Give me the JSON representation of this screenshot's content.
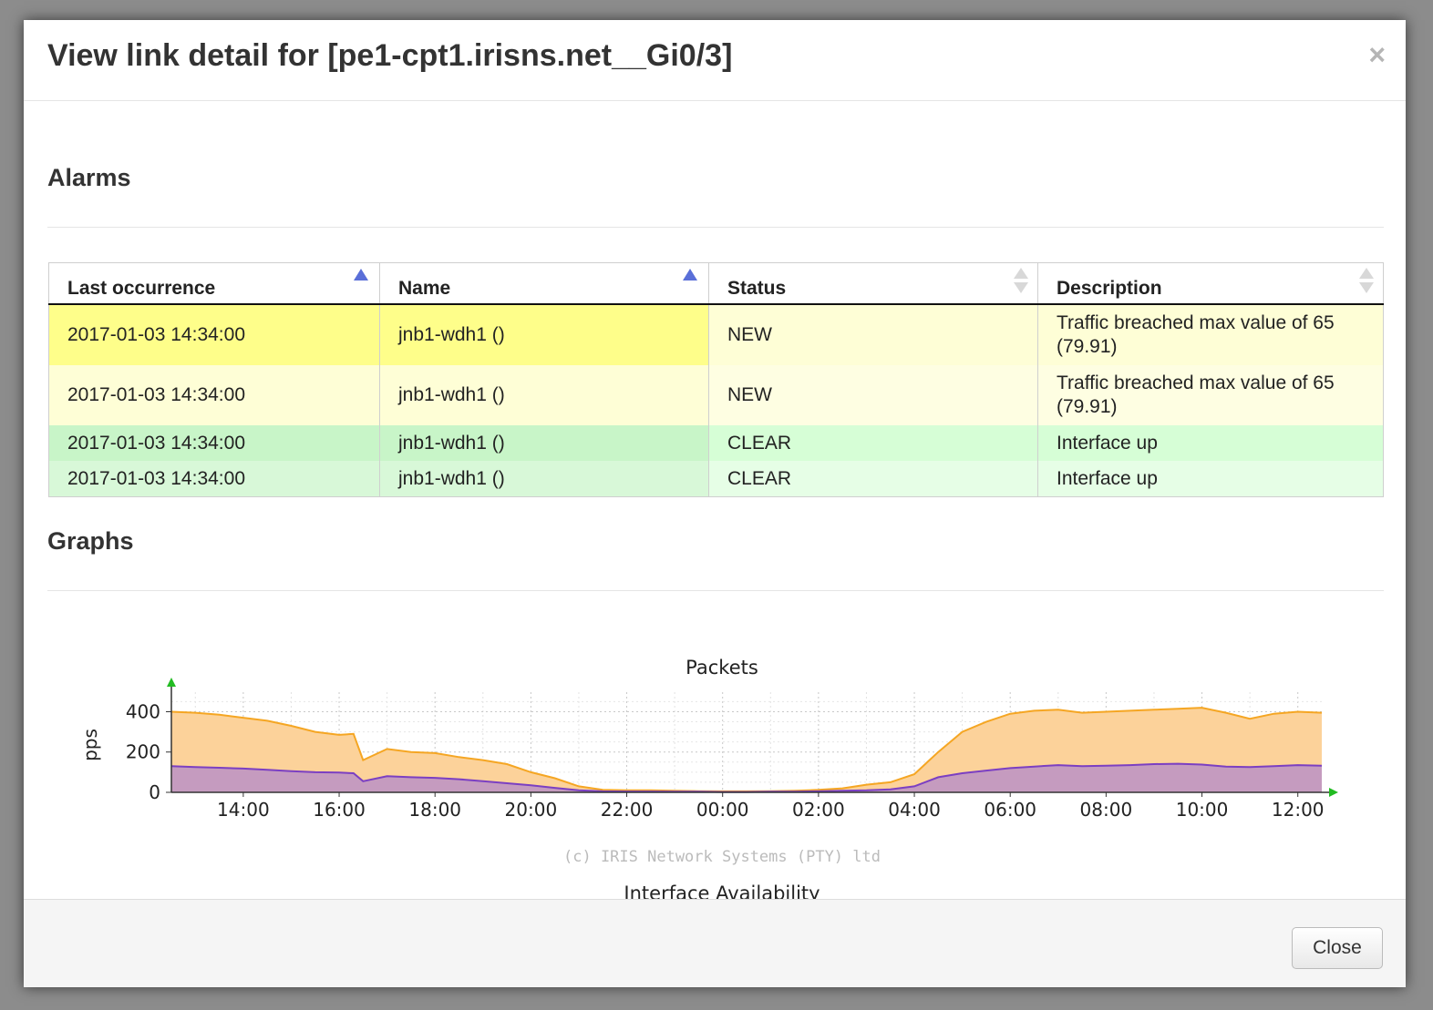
{
  "modal": {
    "title": "View link detail for [pe1-cpt1.irisns.net__Gi0/3]",
    "close_icon": "×"
  },
  "alarms": {
    "title": "Alarms",
    "columns": [
      "Last occurrence",
      "Name",
      "Status",
      "Description"
    ],
    "rows": [
      {
        "last": "2017-01-03 14:34:00",
        "name": "jnb1-wdh1 ()",
        "status": "NEW",
        "description": "Traffic breached max value of 65 (79.91)"
      },
      {
        "last": "2017-01-03 14:34:00",
        "name": "jnb1-wdh1 ()",
        "status": "NEW",
        "description": "Traffic breached max value of 65 (79.91)"
      },
      {
        "last": "2017-01-03 14:34:00",
        "name": "jnb1-wdh1 ()",
        "status": "CLEAR",
        "description": "Interface up"
      },
      {
        "last": "2017-01-03 14:34:00",
        "name": "jnb1-wdh1 ()",
        "status": "CLEAR",
        "description": "Interface up"
      }
    ]
  },
  "graphs": {
    "title": "Graphs",
    "next_chart_title": "Interface Availability"
  },
  "chart_data": {
    "type": "area",
    "title": "Packets",
    "ylabel": "pps",
    "xlabel": "",
    "watermark": "(c) IRIS Network Systems (PTY) ltd",
    "x_ticks": [
      "14:00",
      "16:00",
      "18:00",
      "20:00",
      "22:00",
      "00:00",
      "02:00",
      "04:00",
      "06:00",
      "08:00",
      "10:00",
      "12:00"
    ],
    "y_ticks": [
      0,
      200,
      400
    ],
    "ylim": [
      0,
      470
    ],
    "x_hours": [
      12.5,
      13,
      13.5,
      14,
      14.5,
      15,
      15.5,
      16,
      16.3,
      16.5,
      17,
      17.5,
      18,
      18.5,
      19,
      19.5,
      20,
      20.5,
      21,
      21.5,
      22,
      22.5,
      23,
      23.5,
      24,
      24.5,
      25,
      25.5,
      26,
      26.5,
      27,
      27.5,
      28,
      28.5,
      29,
      29.5,
      30,
      30.5,
      31,
      31.5,
      32,
      32.5,
      33,
      33.5,
      34,
      34.5,
      35,
      35.5,
      36,
      36.5
    ],
    "series": [
      {
        "values": [
          400,
          395,
          385,
          370,
          355,
          330,
          300,
          285,
          290,
          160,
          215,
          200,
          195,
          175,
          160,
          140,
          100,
          70,
          30,
          12,
          10,
          10,
          8,
          6,
          5,
          5,
          6,
          8,
          12,
          20,
          38,
          50,
          90,
          200,
          300,
          350,
          390,
          405,
          410,
          395,
          400,
          405,
          410,
          415,
          420,
          395,
          365,
          390,
          400,
          395
        ],
        "color": "#f5a623",
        "fill": "#fcd29a"
      },
      {
        "values": [
          130,
          125,
          122,
          118,
          112,
          105,
          100,
          98,
          95,
          55,
          80,
          75,
          72,
          65,
          55,
          45,
          35,
          22,
          10,
          5,
          4,
          4,
          3,
          3,
          2,
          2,
          3,
          3,
          5,
          8,
          10,
          15,
          30,
          75,
          95,
          108,
          120,
          128,
          135,
          130,
          132,
          135,
          140,
          142,
          138,
          128,
          125,
          130,
          135,
          132
        ],
        "color": "#7b3fc2",
        "fill": "#c59bbf"
      }
    ]
  }
}
